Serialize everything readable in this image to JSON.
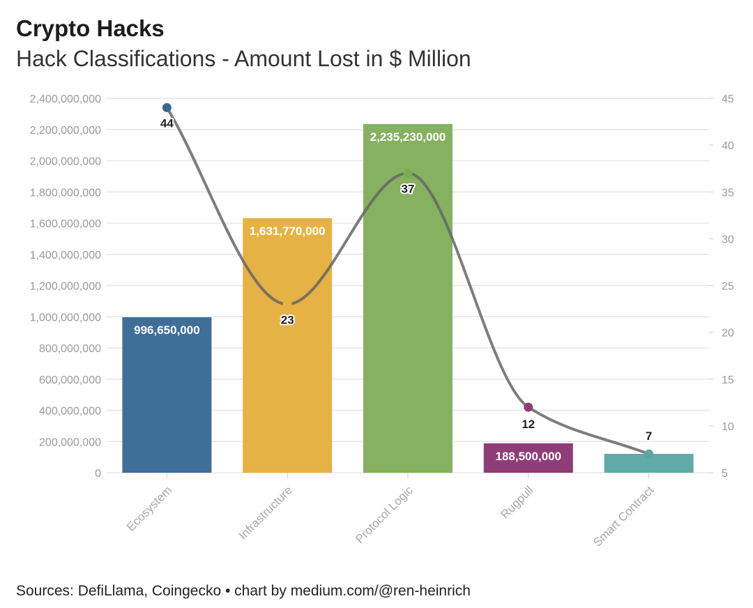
{
  "header": {
    "title": "Crypto Hacks",
    "subtitle": "Hack Classifications - Amount Lost in $ Million"
  },
  "footer": {
    "source": "Sources: DefiLlama, Coingecko • chart by medium.com/@ren-heinrich"
  },
  "chart_data": {
    "type": "bar",
    "title": "Crypto Hacks",
    "subtitle": "Hack Classifications - Amount Lost in $ Million",
    "categories": [
      "Ecosystem",
      "Infrastructure",
      "Protocol Logic",
      "Rugpull",
      "Smart Contract"
    ],
    "series": [
      {
        "type": "bar",
        "axis": "left",
        "values": [
          996650000,
          1631770000,
          2235230000,
          188500000,
          121000000
        ],
        "labels": [
          "996,650,000",
          "1,631,770,000",
          "2,235,230,000",
          "188,500,000",
          ""
        ],
        "colors": [
          "#3f6e99",
          "#e6b245",
          "#86b160",
          "#8e3d78",
          "#62aaa7"
        ]
      },
      {
        "type": "line",
        "axis": "right",
        "smooth": true,
        "values": [
          44,
          23,
          37,
          12,
          7
        ],
        "labels": [
          "44",
          "23",
          "37",
          "12",
          "7"
        ],
        "line_color": "#666666",
        "marker_colors": [
          "#3a6592",
          "#e6b245",
          "#7aab55",
          "#8e3d78",
          "#5aa6a2"
        ]
      }
    ],
    "y_left": {
      "ylim": [
        0,
        2400000000
      ],
      "ticks": [
        "0",
        "200,000,000",
        "400,000,000",
        "600,000,000",
        "800,000,000",
        "1,000,000,000",
        "1,200,000,000",
        "1,400,000,000",
        "1,600,000,000",
        "1,800,000,000",
        "2,000,000,000",
        "2,200,000,000",
        "2,400,000,000"
      ]
    },
    "y_right": {
      "ylim": [
        5,
        45
      ],
      "ticks": [
        "5",
        "10",
        "15",
        "20",
        "25",
        "30",
        "35",
        "40",
        "45"
      ]
    },
    "grid": true,
    "legend": "none"
  }
}
